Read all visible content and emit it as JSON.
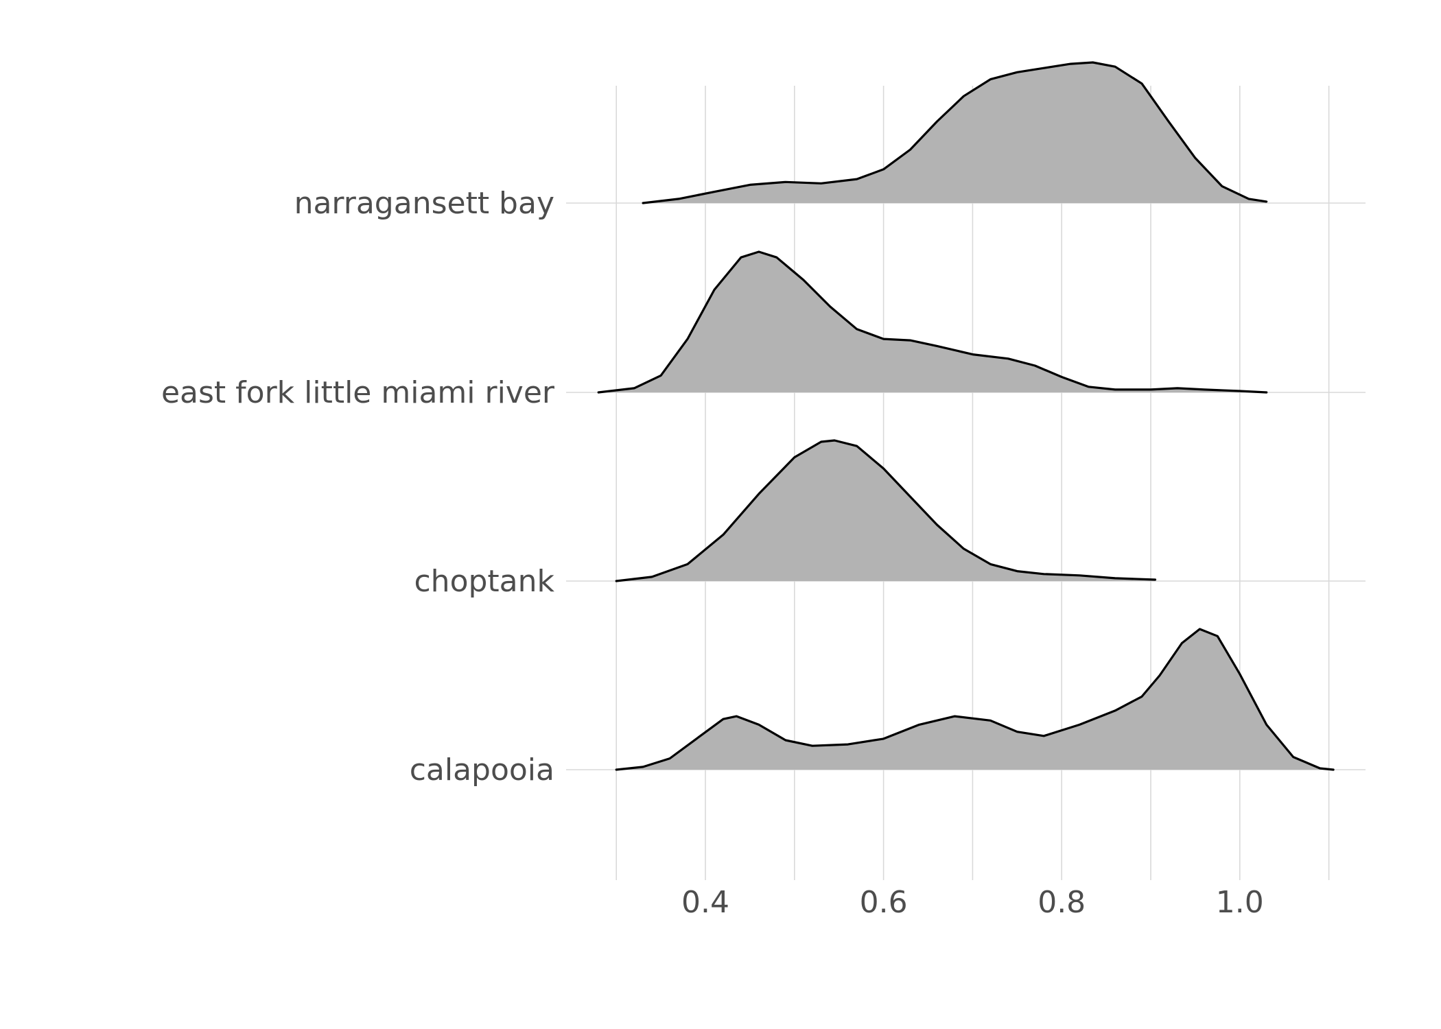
{
  "chart_data": {
    "type": "ridgeline",
    "title": "",
    "xlabel": "",
    "ylabel": "",
    "xlim": [
      0.28,
      1.14
    ],
    "x_ticks": [
      0.4,
      0.6,
      0.8,
      1.0
    ],
    "x_tick_labels": [
      "0.4",
      "0.6",
      "0.8",
      "1.0"
    ],
    "x_minor_gridlines": [
      0.3,
      0.5,
      0.7,
      0.9,
      1.1
    ],
    "grid": true,
    "fill_color": "#b3b3b3",
    "line_color": "#000000",
    "series": [
      {
        "name": "calapooia",
        "points": [
          [
            0.3,
            0.0
          ],
          [
            0.33,
            0.02
          ],
          [
            0.36,
            0.08
          ],
          [
            0.39,
            0.22
          ],
          [
            0.42,
            0.36
          ],
          [
            0.435,
            0.38
          ],
          [
            0.46,
            0.32
          ],
          [
            0.49,
            0.21
          ],
          [
            0.52,
            0.17
          ],
          [
            0.56,
            0.18
          ],
          [
            0.6,
            0.22
          ],
          [
            0.64,
            0.32
          ],
          [
            0.68,
            0.38
          ],
          [
            0.72,
            0.35
          ],
          [
            0.75,
            0.27
          ],
          [
            0.78,
            0.24
          ],
          [
            0.82,
            0.32
          ],
          [
            0.86,
            0.42
          ],
          [
            0.89,
            0.52
          ],
          [
            0.91,
            0.67
          ],
          [
            0.935,
            0.9
          ],
          [
            0.955,
            1.0
          ],
          [
            0.975,
            0.95
          ],
          [
            1.0,
            0.68
          ],
          [
            1.03,
            0.32
          ],
          [
            1.06,
            0.09
          ],
          [
            1.09,
            0.01
          ],
          [
            1.105,
            0.0
          ]
        ]
      },
      {
        "name": "choptank",
        "points": [
          [
            0.3,
            0.0
          ],
          [
            0.34,
            0.03
          ],
          [
            0.38,
            0.12
          ],
          [
            0.42,
            0.33
          ],
          [
            0.46,
            0.62
          ],
          [
            0.5,
            0.88
          ],
          [
            0.53,
            0.99
          ],
          [
            0.545,
            1.0
          ],
          [
            0.57,
            0.96
          ],
          [
            0.6,
            0.8
          ],
          [
            0.63,
            0.6
          ],
          [
            0.66,
            0.4
          ],
          [
            0.69,
            0.23
          ],
          [
            0.72,
            0.12
          ],
          [
            0.75,
            0.07
          ],
          [
            0.78,
            0.05
          ],
          [
            0.82,
            0.04
          ],
          [
            0.86,
            0.02
          ],
          [
            0.905,
            0.01
          ]
        ]
      },
      {
        "name": "east fork little miami river",
        "points": [
          [
            0.28,
            0.0
          ],
          [
            0.32,
            0.03
          ],
          [
            0.35,
            0.12
          ],
          [
            0.38,
            0.38
          ],
          [
            0.41,
            0.73
          ],
          [
            0.44,
            0.96
          ],
          [
            0.46,
            1.0
          ],
          [
            0.48,
            0.96
          ],
          [
            0.51,
            0.8
          ],
          [
            0.54,
            0.61
          ],
          [
            0.57,
            0.45
          ],
          [
            0.6,
            0.38
          ],
          [
            0.63,
            0.37
          ],
          [
            0.66,
            0.33
          ],
          [
            0.7,
            0.27
          ],
          [
            0.74,
            0.24
          ],
          [
            0.77,
            0.19
          ],
          [
            0.8,
            0.11
          ],
          [
            0.83,
            0.04
          ],
          [
            0.86,
            0.02
          ],
          [
            0.9,
            0.02
          ],
          [
            0.93,
            0.03
          ],
          [
            0.96,
            0.02
          ],
          [
            1.0,
            0.01
          ],
          [
            1.03,
            0.0
          ]
        ]
      },
      {
        "name": "narragansett bay",
        "points": [
          [
            0.33,
            0.0
          ],
          [
            0.37,
            0.03
          ],
          [
            0.41,
            0.08
          ],
          [
            0.45,
            0.13
          ],
          [
            0.49,
            0.15
          ],
          [
            0.53,
            0.14
          ],
          [
            0.57,
            0.17
          ],
          [
            0.6,
            0.24
          ],
          [
            0.63,
            0.38
          ],
          [
            0.66,
            0.58
          ],
          [
            0.69,
            0.76
          ],
          [
            0.72,
            0.88
          ],
          [
            0.75,
            0.93
          ],
          [
            0.78,
            0.96
          ],
          [
            0.81,
            0.99
          ],
          [
            0.835,
            1.0
          ],
          [
            0.86,
            0.97
          ],
          [
            0.89,
            0.85
          ],
          [
            0.92,
            0.58
          ],
          [
            0.95,
            0.32
          ],
          [
            0.98,
            0.12
          ],
          [
            1.01,
            0.03
          ],
          [
            1.03,
            0.01
          ]
        ]
      }
    ]
  }
}
